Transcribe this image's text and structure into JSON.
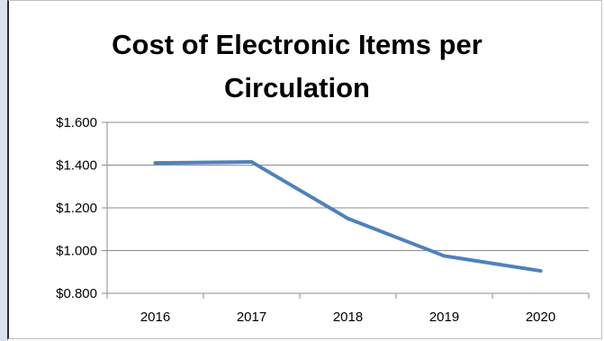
{
  "chart_data": {
    "type": "line",
    "title": "Cost of Electronic Items per Circulation",
    "xlabel": "",
    "ylabel": "",
    "categories": [
      "2016",
      "2017",
      "2018",
      "2019",
      "2020"
    ],
    "series": [
      {
        "values": [
          1.41,
          1.415,
          1.15,
          0.975,
          0.905
        ],
        "color": "#4f81bd"
      }
    ],
    "ylim": [
      0.8,
      1.6
    ],
    "yticks": [
      1.6,
      1.4,
      1.2,
      1.0,
      0.8
    ],
    "ytick_labels": [
      "$1.600",
      "$1.400",
      "$1.200",
      "$1.000",
      "$0.800"
    ],
    "grid": true,
    "legend": "none"
  }
}
